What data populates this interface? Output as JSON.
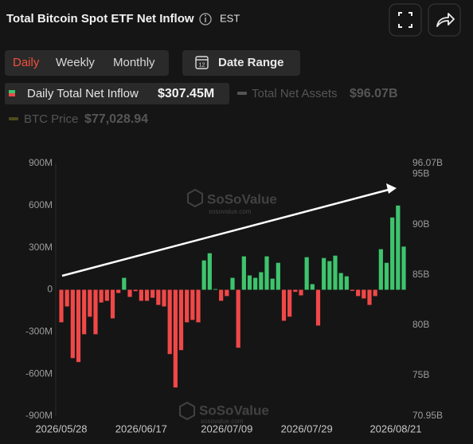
{
  "header": {
    "title": "Total Bitcoin Spot ETF Net Inflow",
    "timezone": "EST"
  },
  "tabs": [
    "Daily",
    "Weekly",
    "Monthly"
  ],
  "date_range": "Date Range",
  "calendar_day": "12",
  "watermark": "SoSoValue",
  "watermark_url": "sosovalue.com",
  "chart_data": {
    "type": "bar",
    "categories": [
      "2026/05/28",
      null,
      null,
      null,
      null,
      null,
      null,
      null,
      null,
      null,
      null,
      null,
      null,
      null,
      "2026/06/17",
      null,
      null,
      null,
      null,
      null,
      null,
      null,
      null,
      null,
      null,
      null,
      null,
      null,
      null,
      "2026/07/09",
      null,
      null,
      null,
      null,
      null,
      null,
      null,
      null,
      null,
      null,
      null,
      null,
      null,
      "2026/07/29",
      null,
      null,
      null,
      null,
      null,
      null,
      null,
      null,
      null,
      null,
      null,
      null,
      null,
      null,
      null,
      null,
      "2026/08/21"
    ],
    "series": [
      {
        "name": "Daily Total Net Inflow",
        "legend_value": "$307.45M",
        "positive_color": "#3ec46d",
        "negative_color": "#f04848",
        "values": [
          -232,
          -119,
          -487,
          -515,
          -317,
          -192,
          -317,
          -91,
          -79,
          -204,
          -23,
          85,
          -51,
          -10,
          -79,
          -79,
          -57,
          -108,
          -119,
          -458,
          -696,
          -430,
          -232,
          -215,
          -232,
          209,
          260,
          5,
          -79,
          -45,
          85,
          -413,
          238,
          102,
          85,
          125,
          238,
          79,
          192,
          -221,
          -192,
          -15,
          -40,
          232,
          40,
          -255,
          226,
          204,
          243,
          119,
          96,
          -8,
          -45,
          -62,
          -108,
          -45,
          289,
          192,
          515,
          600,
          307.45
        ]
      },
      {
        "name": "Total Net Assets",
        "legend_value": "$96.07B",
        "visible": false,
        "axis": "y2"
      },
      {
        "name": "BTC Price",
        "legend_value": "$77,028.94",
        "visible": false
      }
    ],
    "ylim": [
      -900,
      900
    ],
    "yticks": [
      {
        "value": 900,
        "label": "900M"
      },
      {
        "value": 600,
        "label": "600M"
      },
      {
        "value": 300,
        "label": "300M"
      },
      0,
      {
        "value": -300,
        "label": "-300M"
      },
      {
        "value": -600,
        "label": "-600M"
      },
      {
        "value": -900,
        "label": "-900M"
      }
    ],
    "y2lim": [
      70.95,
      96.07
    ],
    "y2ticks": [
      {
        "value": 96.07,
        "label": "96.07B"
      },
      {
        "value": 95,
        "label": "95B"
      },
      {
        "value": 90,
        "label": "90B"
      },
      {
        "value": 85,
        "label": "85B"
      },
      {
        "value": 80,
        "label": "80B"
      },
      {
        "value": 75,
        "label": "75B"
      },
      {
        "value": 70.95,
        "label": "70.95B"
      }
    ],
    "grid": false
  }
}
